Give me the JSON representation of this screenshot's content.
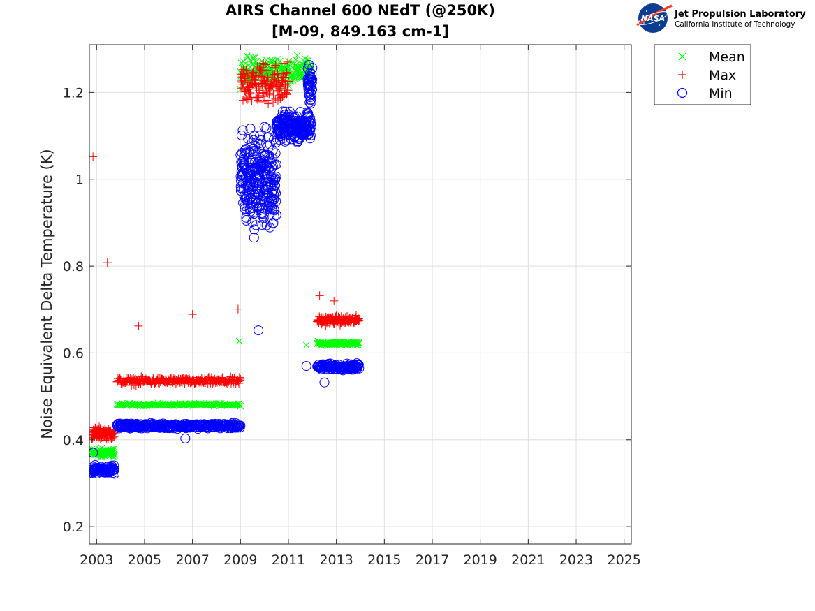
{
  "chart_data": {
    "type": "scatter",
    "title": [
      "AIRS Channel 600 NEdT (@250K)",
      "[M-09, 849.163 cm-1]"
    ],
    "xlabel": "",
    "ylabel": "Noise Equivalent Delta Temperature (K)",
    "xlim": [
      2002.7,
      2025.3
    ],
    "ylim": [
      0.16,
      1.31
    ],
    "x_ticks": [
      2003,
      2005,
      2007,
      2009,
      2011,
      2013,
      2015,
      2017,
      2019,
      2021,
      2023,
      2025
    ],
    "x_tick_labels": [
      "2003",
      "2005",
      "2007",
      "2009",
      "2011",
      "2013",
      "2015",
      "2017",
      "2019",
      "2021",
      "2023",
      "2025"
    ],
    "y_ticks": [
      0.2,
      0.4,
      0.6,
      0.8,
      1.0,
      1.2
    ],
    "y_tick_labels": [
      "0.2",
      "0.4",
      "0.6",
      "0.8",
      "1",
      "1.2"
    ],
    "grid": true,
    "legend_position": "outside-top-right",
    "series": [
      {
        "name": "Mean",
        "marker": "x",
        "color": "#00ff00",
        "segments": [
          {
            "x0": 2002.8,
            "x1": 2003.75,
            "level": 0.37,
            "spread": 0.015,
            "n": 90
          },
          {
            "x0": 2003.85,
            "x1": 2009.0,
            "level": 0.481,
            "spread": 0.004,
            "n": 170
          },
          {
            "x0": 2009.0,
            "x1": 2011.95,
            "level": 1.25,
            "spread": 0.045,
            "n": 220
          },
          {
            "x0": 2012.2,
            "x1": 2013.95,
            "level": 0.622,
            "spread": 0.006,
            "n": 110
          }
        ],
        "outliers": [
          [
            2003.2,
            0.36
          ],
          [
            2008.95,
            0.627
          ],
          [
            2011.75,
            0.618
          ]
        ]
      },
      {
        "name": "Max",
        "marker": "+",
        "color": "#ff0000",
        "segments": [
          {
            "x0": 2002.8,
            "x1": 2003.75,
            "level": 0.415,
            "spread": 0.02,
            "n": 90
          },
          {
            "x0": 2003.85,
            "x1": 2009.0,
            "level": 0.535,
            "spread": 0.012,
            "n": 240
          },
          {
            "x0": 2009.0,
            "x1": 2011.0,
            "level": 1.22,
            "spread": 0.07,
            "n": 170
          },
          {
            "x0": 2012.2,
            "x1": 2013.95,
            "level": 0.675,
            "spread": 0.014,
            "n": 140
          }
        ],
        "outliers": [
          [
            2002.85,
            1.052
          ],
          [
            2003.45,
            0.808
          ],
          [
            2004.75,
            0.662
          ],
          [
            2007.0,
            0.689
          ],
          [
            2008.9,
            0.701
          ],
          [
            2012.3,
            0.732
          ],
          [
            2012.9,
            0.72
          ]
        ]
      },
      {
        "name": "Min",
        "marker": "o",
        "color": "#0000ff",
        "segments": [
          {
            "x0": 2002.8,
            "x1": 2003.75,
            "level": 0.332,
            "spread": 0.012,
            "n": 80
          },
          {
            "x0": 2003.85,
            "x1": 2009.0,
            "level": 0.432,
            "spread": 0.008,
            "n": 300
          },
          {
            "x0": 2009.0,
            "x1": 2010.5,
            "level": 1.0,
            "spread": 0.16,
            "n": 260
          },
          {
            "x0": 2010.5,
            "x1": 2011.95,
            "level": 1.12,
            "spread": 0.045,
            "n": 200
          },
          {
            "x0": 2011.8,
            "x1": 2012.0,
            "level": 1.22,
            "spread": 0.06,
            "n": 40
          },
          {
            "x0": 2012.2,
            "x1": 2013.95,
            "level": 0.568,
            "spread": 0.01,
            "n": 130
          }
        ],
        "outliers": [
          [
            2002.85,
            0.37
          ],
          [
            2006.7,
            0.403
          ],
          [
            2009.75,
            0.652
          ],
          [
            2010.5,
            0.918
          ],
          [
            2011.75,
            0.57
          ],
          [
            2012.5,
            0.532
          ]
        ]
      }
    ]
  },
  "legend": [
    "Mean",
    "Max",
    "Min"
  ],
  "logo": {
    "line1": "Jet Propulsion Laboratory",
    "line2": "California Institute of Technology",
    "badge": "NASA"
  },
  "colors": {
    "mean": "#00ff00",
    "max": "#ff0000",
    "min": "#0000ff",
    "axis": "#262626",
    "grid": "#dedede"
  }
}
